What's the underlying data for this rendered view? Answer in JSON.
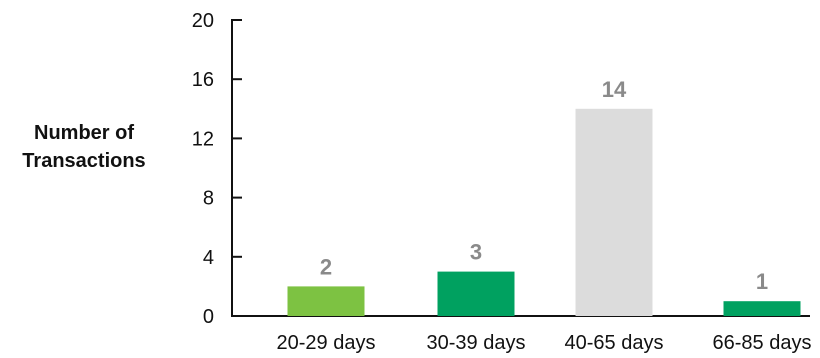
{
  "chart_data": {
    "type": "bar",
    "title": "",
    "xlabel": "",
    "ylabel_lines": [
      "Number of",
      "Transactions"
    ],
    "categories": [
      "20-29 days",
      "30-39 days",
      "40-65 days",
      "66-85 days"
    ],
    "values": [
      2,
      3,
      14,
      1
    ],
    "value_labels": [
      "2",
      "3",
      "14",
      "1"
    ],
    "bar_colors": [
      "#7dc242",
      "#00a160",
      "#dcdcdc",
      "#00a160"
    ],
    "ylim": [
      0,
      20
    ],
    "yticks": [
      0,
      4,
      8,
      12,
      16,
      20
    ],
    "ytick_labels": [
      "0",
      "4",
      "8",
      "12",
      "16",
      "20"
    ],
    "grid": false,
    "legend": "none"
  }
}
